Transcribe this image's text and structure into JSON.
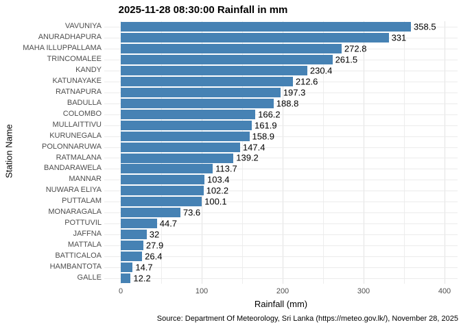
{
  "title": "2025-11-28 08:30:00 Rainfall in mm",
  "axes": {
    "x_label": "Rainfall (mm)",
    "y_label": "Station Name",
    "x_ticks": [
      "0",
      "100",
      "200",
      "300",
      "400"
    ]
  },
  "caption": "Source: Department Of Meteorology, Sri Lanka (https://meteo.gov.lk/), November 28, 2025",
  "colors": {
    "bar": "#4682B4",
    "grid_major": "#e2e2e2",
    "grid_minor": "#ededed",
    "axis_text": "#4d4d4d",
    "label_text": "#000000",
    "background": "#ffffff"
  },
  "chart_data": {
    "type": "bar",
    "orientation": "horizontal",
    "title": "2025-11-28 08:30:00 Rainfall in mm",
    "xlabel": "Rainfall (mm)",
    "ylabel": "Station Name",
    "xlim": [
      0,
      400
    ],
    "x_tick_values": [
      0,
      100,
      200,
      300,
      400
    ],
    "minor_grid_step": 50,
    "grid": true,
    "legend": false,
    "categories": [
      "VAVUNIYA",
      "ANURADHAPURA",
      "MAHA ILLUPPALLAMA",
      "TRINCOMALEE",
      "KANDY",
      "KATUNAYAKE",
      "RATNAPURA",
      "BADULLA",
      "COLOMBO",
      "MULLAITTIVU",
      "KURUNEGALA",
      "POLONNARUWA",
      "RATMALANA",
      "BANDARAWELA",
      "MANNAR",
      "NUWARA ELIYA",
      "PUTTALAM",
      "MONARAGALA",
      "POTTUVIL",
      "JAFFNA",
      "MATTALA",
      "BATTICALOA",
      "HAMBANTOTA",
      "GALLE"
    ],
    "values": [
      358.5,
      331,
      272.8,
      261.5,
      230.4,
      212.6,
      197.3,
      188.8,
      166.2,
      161.9,
      158.9,
      147.4,
      139.2,
      113.7,
      103.4,
      102.2,
      100.1,
      73.6,
      44.7,
      32,
      27.9,
      26.4,
      14.7,
      12.2
    ],
    "value_labels": [
      "358.5",
      "331",
      "272.8",
      "261.5",
      "230.4",
      "212.6",
      "197.3",
      "188.8",
      "166.2",
      "161.9",
      "158.9",
      "147.4",
      "139.2",
      "113.7",
      "103.4",
      "102.2",
      "100.1",
      "73.6",
      "44.7",
      "32",
      "27.9",
      "26.4",
      "14.7",
      "12.2"
    ]
  }
}
